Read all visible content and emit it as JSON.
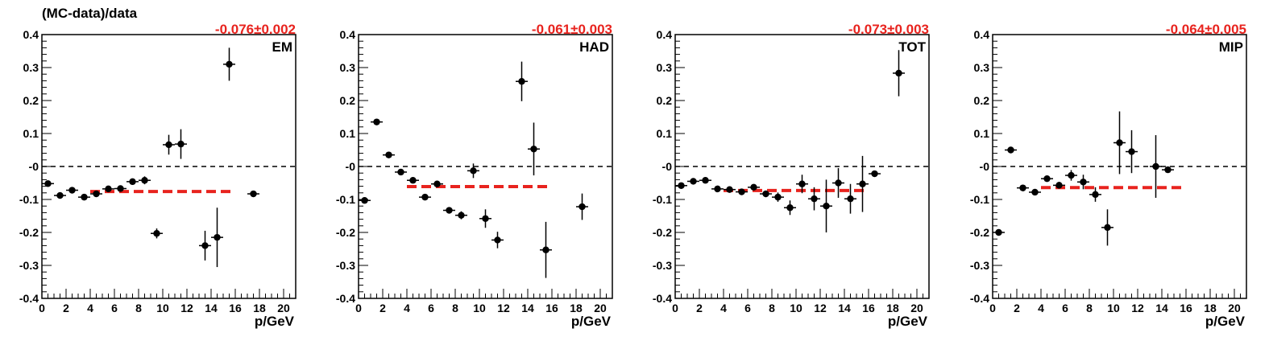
{
  "figure": {
    "ylabel": "(MC-data)/data",
    "colors": {
      "fit": "#e8231e",
      "points": "#000000",
      "frame": "#000000"
    }
  },
  "chart_data": [
    {
      "type": "scatter",
      "panel_label": "EM",
      "fit_label": "-0.076±0.002",
      "fit_value": -0.076,
      "fit_range": [
        4,
        16
      ],
      "xlabel": "p/GeV",
      "xlim": [
        0,
        21
      ],
      "ylim": [
        -0.4,
        0.4
      ],
      "xticks": [
        "0",
        "2",
        "4",
        "6",
        "8",
        "10",
        "12",
        "14",
        "16",
        "18",
        "20"
      ],
      "yticks": [
        "-0.4",
        "-0.3",
        "-0.2",
        "-0.1",
        "-0",
        "0.1",
        "0.2",
        "0.3",
        "0.4"
      ],
      "points": [
        {
          "x": 0.5,
          "y": -0.052,
          "err": 0.006
        },
        {
          "x": 1.5,
          "y": -0.088,
          "err": 0.006
        },
        {
          "x": 2.5,
          "y": -0.072,
          "err": 0.006
        },
        {
          "x": 3.5,
          "y": -0.093,
          "err": 0.006
        },
        {
          "x": 4.5,
          "y": -0.083,
          "err": 0.008
        },
        {
          "x": 5.5,
          "y": -0.068,
          "err": 0.006
        },
        {
          "x": 6.5,
          "y": -0.067,
          "err": 0.006
        },
        {
          "x": 7.5,
          "y": -0.046,
          "err": 0.008
        },
        {
          "x": 8.5,
          "y": -0.042,
          "err": 0.012
        },
        {
          "x": 9.5,
          "y": -0.203,
          "err": 0.015
        },
        {
          "x": 10.5,
          "y": 0.066,
          "err": 0.03
        },
        {
          "x": 11.5,
          "y": 0.068,
          "err": 0.045
        },
        {
          "x": 13.5,
          "y": -0.24,
          "err": 0.045
        },
        {
          "x": 14.5,
          "y": -0.215,
          "err": 0.09
        },
        {
          "x": 15.5,
          "y": 0.31,
          "err": 0.05
        },
        {
          "x": 17.5,
          "y": -0.083,
          "err": 0.006
        }
      ]
    },
    {
      "type": "scatter",
      "panel_label": "HAD",
      "fit_label": "-0.061±0.003",
      "fit_value": -0.061,
      "fit_range": [
        4,
        16
      ],
      "xlabel": "p/GeV",
      "xlim": [
        0,
        21
      ],
      "ylim": [
        -0.4,
        0.4
      ],
      "xticks": [
        "0",
        "2",
        "4",
        "6",
        "8",
        "10",
        "12",
        "14",
        "16",
        "18",
        "20"
      ],
      "yticks": [
        "-0.4",
        "-0.3",
        "-0.2",
        "-0.1",
        "-0",
        "0.1",
        "0.2",
        "0.3",
        "0.4"
      ],
      "points": [
        {
          "x": 0.5,
          "y": -0.103,
          "err": 0.006
        },
        {
          "x": 1.5,
          "y": 0.135,
          "err": 0.006
        },
        {
          "x": 2.5,
          "y": 0.035,
          "err": 0.006
        },
        {
          "x": 3.5,
          "y": -0.017,
          "err": 0.006
        },
        {
          "x": 4.5,
          "y": -0.042,
          "err": 0.006
        },
        {
          "x": 5.5,
          "y": -0.093,
          "err": 0.006
        },
        {
          "x": 6.5,
          "y": -0.053,
          "err": 0.008
        },
        {
          "x": 7.5,
          "y": -0.133,
          "err": 0.008
        },
        {
          "x": 8.5,
          "y": -0.148,
          "err": 0.012
        },
        {
          "x": 9.5,
          "y": -0.013,
          "err": 0.022
        },
        {
          "x": 10.5,
          "y": -0.158,
          "err": 0.028
        },
        {
          "x": 11.5,
          "y": -0.223,
          "err": 0.025
        },
        {
          "x": 13.5,
          "y": 0.258,
          "err": 0.06
        },
        {
          "x": 14.5,
          "y": 0.053,
          "err": 0.08
        },
        {
          "x": 15.5,
          "y": -0.253,
          "err": 0.085
        },
        {
          "x": 18.5,
          "y": -0.122,
          "err": 0.04
        }
      ]
    },
    {
      "type": "scatter",
      "panel_label": "TOT",
      "fit_label": "-0.073±0.003",
      "fit_value": -0.073,
      "fit_range": [
        4,
        16
      ],
      "xlabel": "p/GeV",
      "xlim": [
        0,
        21
      ],
      "ylim": [
        -0.4,
        0.4
      ],
      "xticks": [
        "0",
        "2",
        "4",
        "6",
        "8",
        "10",
        "12",
        "14",
        "16",
        "18",
        "20"
      ],
      "yticks": [
        "-0.4",
        "-0.3",
        "-0.2",
        "-0.1",
        "-0",
        "0.1",
        "0.2",
        "0.3",
        "0.4"
      ],
      "points": [
        {
          "x": 0.5,
          "y": -0.058,
          "err": 0.006
        },
        {
          "x": 1.5,
          "y": -0.045,
          "err": 0.006
        },
        {
          "x": 2.5,
          "y": -0.042,
          "err": 0.006
        },
        {
          "x": 3.5,
          "y": -0.068,
          "err": 0.006
        },
        {
          "x": 4.5,
          "y": -0.07,
          "err": 0.006
        },
        {
          "x": 5.5,
          "y": -0.077,
          "err": 0.006
        },
        {
          "x": 6.5,
          "y": -0.063,
          "err": 0.008
        },
        {
          "x": 7.5,
          "y": -0.083,
          "err": 0.01
        },
        {
          "x": 8.5,
          "y": -0.093,
          "err": 0.014
        },
        {
          "x": 9.5,
          "y": -0.125,
          "err": 0.022
        },
        {
          "x": 10.5,
          "y": -0.053,
          "err": 0.028
        },
        {
          "x": 11.5,
          "y": -0.098,
          "err": 0.035
        },
        {
          "x": 12.5,
          "y": -0.12,
          "err": 0.08
        },
        {
          "x": 13.5,
          "y": -0.05,
          "err": 0.045
        },
        {
          "x": 14.5,
          "y": -0.098,
          "err": 0.045
        },
        {
          "x": 15.5,
          "y": -0.053,
          "err": 0.085
        },
        {
          "x": 16.5,
          "y": -0.022,
          "err": 0.006
        },
        {
          "x": 18.5,
          "y": 0.283,
          "err": 0.07
        }
      ]
    },
    {
      "type": "scatter",
      "panel_label": "MIP",
      "fit_label": "-0.064±0.005",
      "fit_value": -0.064,
      "fit_range": [
        4,
        16
      ],
      "xlabel": "p/GeV",
      "xlim": [
        0,
        21
      ],
      "ylim": [
        -0.4,
        0.4
      ],
      "xticks": [
        "0",
        "2",
        "4",
        "6",
        "8",
        "10",
        "12",
        "14",
        "16",
        "18",
        "20"
      ],
      "yticks": [
        "-0.4",
        "-0.3",
        "-0.2",
        "-0.1",
        "-0",
        "0.1",
        "0.2",
        "0.3",
        "0.4"
      ],
      "points": [
        {
          "x": 0.5,
          "y": -0.2,
          "err": 0.006
        },
        {
          "x": 1.5,
          "y": 0.05,
          "err": 0.006
        },
        {
          "x": 2.5,
          "y": -0.065,
          "err": 0.008
        },
        {
          "x": 3.5,
          "y": -0.078,
          "err": 0.008
        },
        {
          "x": 4.5,
          "y": -0.037,
          "err": 0.008
        },
        {
          "x": 5.5,
          "y": -0.057,
          "err": 0.01
        },
        {
          "x": 6.5,
          "y": -0.027,
          "err": 0.016
        },
        {
          "x": 7.5,
          "y": -0.047,
          "err": 0.022
        },
        {
          "x": 8.5,
          "y": -0.085,
          "err": 0.022
        },
        {
          "x": 9.5,
          "y": -0.185,
          "err": 0.055
        },
        {
          "x": 10.5,
          "y": 0.072,
          "err": 0.095
        },
        {
          "x": 11.5,
          "y": 0.045,
          "err": 0.065
        },
        {
          "x": 13.5,
          "y": 0.0,
          "err": 0.095
        },
        {
          "x": 14.5,
          "y": -0.01,
          "err": 0.008
        }
      ]
    }
  ]
}
